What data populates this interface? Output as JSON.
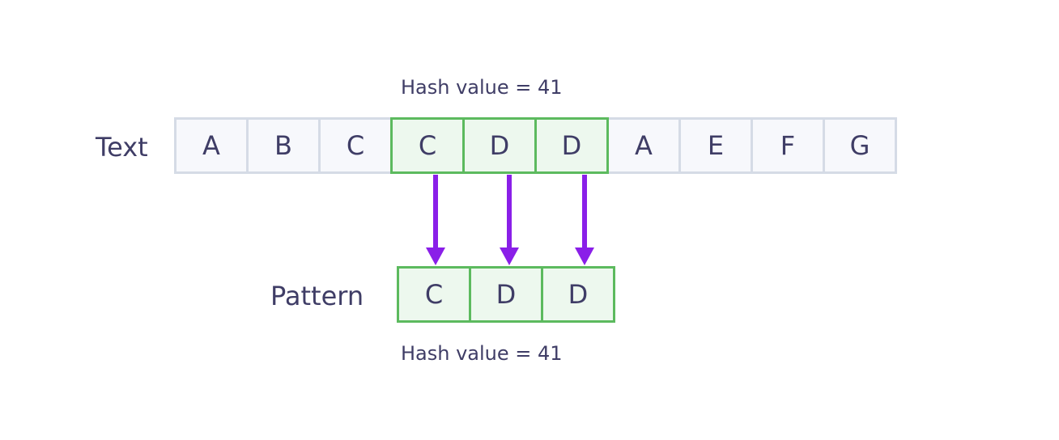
{
  "text_row": {
    "label": "Text",
    "hash_label": "Hash value = 41",
    "cells": [
      {
        "char": "A",
        "match": false
      },
      {
        "char": "B",
        "match": false
      },
      {
        "char": "C",
        "match": false
      },
      {
        "char": "C",
        "match": true
      },
      {
        "char": "D",
        "match": true
      },
      {
        "char": "D",
        "match": true
      },
      {
        "char": "A",
        "match": false
      },
      {
        "char": "E",
        "match": false
      },
      {
        "char": "F",
        "match": false
      },
      {
        "char": "G",
        "match": false
      }
    ]
  },
  "pattern_row": {
    "label": "Pattern",
    "hash_label": "Hash value = 41",
    "cells": [
      {
        "char": "C"
      },
      {
        "char": "D"
      },
      {
        "char": "D"
      }
    ]
  },
  "colors": {
    "text": "#3f3d66",
    "cell_fill": "#f7f8fc",
    "cell_border": "#d5dbe6",
    "match_fill": "#edf8ee",
    "match_border": "#5cba5e",
    "arrow": "#8a1fe8"
  }
}
